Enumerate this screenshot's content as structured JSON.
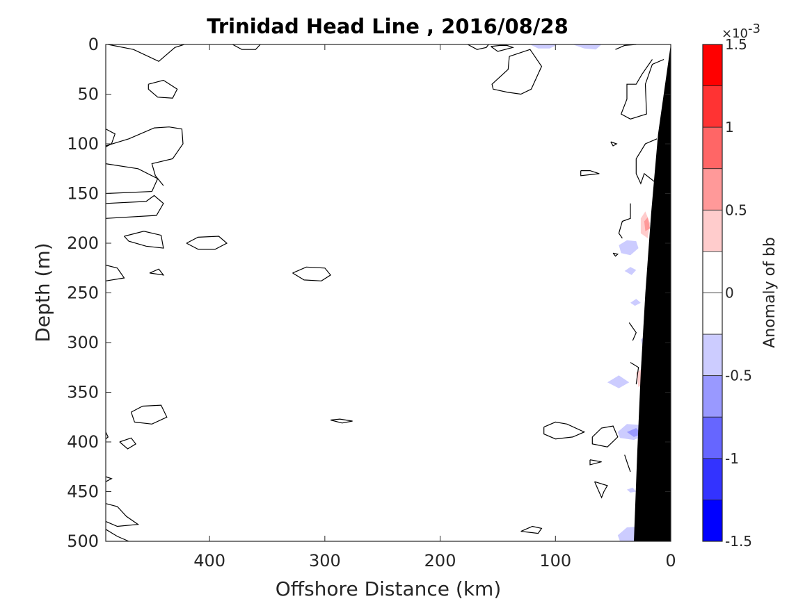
{
  "chart_data": {
    "type": "contour",
    "title": "Trinidad Head Line , 2016/08/28",
    "xlabel": "Offshore Distance (km)",
    "ylabel": "Depth (m)",
    "xlim": [
      490,
      0
    ],
    "ylim": [
      0,
      500
    ],
    "x_reversed": true,
    "y_reversed": true,
    "xticks": [
      "400",
      "300",
      "200",
      "100",
      "0"
    ],
    "xtick_values": [
      400,
      300,
      200,
      100,
      0
    ],
    "yticks": [
      "0",
      "50",
      "100",
      "150",
      "200",
      "250",
      "300",
      "350",
      "400",
      "450",
      "500"
    ],
    "ytick_values": [
      0,
      50,
      100,
      150,
      200,
      250,
      300,
      350,
      400,
      450,
      500
    ],
    "colorbar": {
      "label": "Anomaly of bb",
      "exponent_prefix": "×10",
      "exponent_power": "-3",
      "range": [
        -1.5,
        1.5
      ],
      "step": 0.25,
      "tick_labels": [
        "1.5",
        "1",
        "0.5",
        "0",
        "-0.5",
        "-1",
        "-1.5"
      ],
      "tick_values": [
        1.5,
        1.0,
        0.5,
        0,
        -0.5,
        -1.0,
        -1.5
      ],
      "colors_top_to_bottom": [
        "#ff0000",
        "#ff3333",
        "#ff6666",
        "#ff9999",
        "#ffcccc",
        "#ffffff",
        "#ffffff",
        "#ccccff",
        "#9999ff",
        "#6666ff",
        "#3333ff",
        "#0000ff"
      ]
    },
    "bathymetry_color": "#000000",
    "bathymetry": [
      [
        0,
        0
      ],
      [
        11,
        90
      ],
      [
        17,
        170
      ],
      [
        22,
        250
      ],
      [
        26,
        330
      ],
      [
        29,
        410
      ],
      [
        32,
        500
      ],
      [
        0,
        500
      ]
    ],
    "contours_zero_level": [
      [
        [
          488,
          0
        ],
        [
          466,
          5
        ],
        [
          444,
          17
        ],
        [
          430,
          3
        ],
        [
          422,
          0
        ]
      ],
      [
        [
          380,
          0
        ],
        [
          372,
          5
        ],
        [
          360,
          5
        ],
        [
          356,
          0
        ]
      ],
      [
        [
          453,
          40
        ],
        [
          440,
          36
        ],
        [
          428,
          45
        ],
        [
          432,
          54
        ],
        [
          445,
          53
        ],
        [
          453,
          45
        ],
        [
          453,
          40
        ]
      ],
      [
        [
          490,
          85
        ],
        [
          482,
          90
        ],
        [
          485,
          100
        ],
        [
          490,
          103
        ]
      ],
      [
        [
          490,
          102
        ],
        [
          470,
          95
        ],
        [
          448,
          84
        ],
        [
          435,
          83
        ],
        [
          424,
          85
        ],
        [
          423,
          100
        ],
        [
          432,
          115
        ],
        [
          450,
          120
        ],
        [
          447,
          132
        ],
        [
          440,
          142
        ]
      ],
      [
        [
          490,
          120
        ],
        [
          462,
          125
        ],
        [
          445,
          135
        ],
        [
          450,
          148
        ],
        [
          490,
          150
        ]
      ],
      [
        [
          490,
          160
        ],
        [
          455,
          158
        ],
        [
          448,
          152
        ],
        [
          440,
          160
        ],
        [
          446,
          172
        ],
        [
          490,
          175
        ]
      ],
      [
        [
          474,
          193
        ],
        [
          457,
          188
        ],
        [
          442,
          192
        ],
        [
          440,
          205
        ],
        [
          455,
          203
        ],
        [
          470,
          198
        ],
        [
          474,
          193
        ]
      ],
      [
        [
          420,
          200
        ],
        [
          410,
          194
        ],
        [
          392,
          193
        ],
        [
          385,
          200
        ],
        [
          395,
          206
        ],
        [
          410,
          206
        ],
        [
          420,
          200
        ]
      ],
      [
        [
          490,
          222
        ],
        [
          480,
          225
        ],
        [
          474,
          235
        ],
        [
          490,
          238
        ]
      ],
      [
        [
          452,
          230
        ],
        [
          444,
          226
        ],
        [
          440,
          232
        ],
        [
          452,
          230
        ]
      ],
      [
        [
          328,
          230
        ],
        [
          316,
          224
        ],
        [
          300,
          225
        ],
        [
          295,
          232
        ],
        [
          303,
          238
        ],
        [
          318,
          237
        ],
        [
          328,
          230
        ]
      ],
      [
        [
          156,
          2
        ],
        [
          148,
          1
        ],
        [
          142,
          1
        ],
        [
          137,
          3
        ],
        [
          150,
          7
        ],
        [
          156,
          2
        ]
      ],
      [
        [
          176,
          0
        ],
        [
          168,
          5
        ],
        [
          160,
          3
        ],
        [
          158,
          0
        ]
      ],
      [
        [
          140,
          12
        ],
        [
          122,
          5
        ],
        [
          112,
          22
        ],
        [
          121,
          45
        ],
        [
          130,
          50
        ],
        [
          142,
          48
        ],
        [
          154,
          45
        ],
        [
          155,
          40
        ],
        [
          141,
          25
        ],
        [
          140,
          12
        ]
      ],
      [
        [
          48,
          5
        ],
        [
          40,
          1
        ],
        [
          30,
          0
        ]
      ],
      [
        [
          6,
          15
        ],
        [
          16,
          20
        ],
        [
          22,
          40
        ],
        [
          21,
          70
        ],
        [
          35,
          75
        ],
        [
          43,
          70
        ],
        [
          38,
          55
        ],
        [
          38,
          40
        ],
        [
          30,
          40
        ],
        [
          25,
          30
        ],
        [
          16,
          15
        ]
      ],
      [
        [
          12,
          95
        ],
        [
          22,
          100
        ],
        [
          30,
          115
        ],
        [
          30,
          130
        ],
        [
          26,
          140
        ],
        [
          23,
          130
        ],
        [
          12,
          140
        ]
      ],
      [
        [
          35,
          160
        ],
        [
          35,
          175
        ],
        [
          42,
          178
        ],
        [
          45,
          190
        ],
        [
          42,
          195
        ]
      ],
      [
        [
          52,
          98
        ],
        [
          50,
          102
        ],
        [
          47,
          100
        ],
        [
          52,
          98
        ]
      ],
      [
        [
          78,
          127
        ],
        [
          70,
          127
        ],
        [
          62,
          130
        ],
        [
          78,
          132
        ],
        [
          78,
          127
        ]
      ],
      [
        [
          50,
          210
        ],
        [
          48,
          213
        ],
        [
          46,
          211
        ],
        [
          50,
          210
        ]
      ],
      [
        [
          468,
          370
        ],
        [
          458,
          364
        ],
        [
          442,
          363
        ],
        [
          437,
          375
        ],
        [
          450,
          382
        ],
        [
          465,
          380
        ],
        [
          468,
          370
        ]
      ],
      [
        [
          295,
          378
        ],
        [
          285,
          381
        ],
        [
          276,
          379
        ],
        [
          287,
          377
        ],
        [
          295,
          378
        ]
      ],
      [
        [
          110,
          385
        ],
        [
          100,
          380
        ],
        [
          90,
          382
        ],
        [
          75,
          390
        ],
        [
          85,
          395
        ],
        [
          100,
          397
        ],
        [
          110,
          392
        ],
        [
          110,
          385
        ]
      ],
      [
        [
          68,
          395
        ],
        [
          60,
          386
        ],
        [
          50,
          384
        ],
        [
          46,
          395
        ],
        [
          55,
          405
        ],
        [
          68,
          402
        ],
        [
          68,
          395
        ]
      ],
      [
        [
          490,
          390
        ],
        [
          488,
          395
        ],
        [
          490,
          397
        ]
      ],
      [
        [
          478,
          400
        ],
        [
          468,
          396
        ],
        [
          464,
          402
        ],
        [
          471,
          407
        ],
        [
          478,
          400
        ]
      ],
      [
        [
          490,
          435
        ],
        [
          485,
          437
        ],
        [
          490,
          440
        ]
      ],
      [
        [
          490,
          462
        ],
        [
          480,
          465
        ],
        [
          472,
          475
        ],
        [
          462,
          483
        ],
        [
          480,
          485
        ],
        [
          490,
          480
        ]
      ],
      [
        [
          66,
          440
        ],
        [
          55,
          444
        ],
        [
          58,
          450
        ],
        [
          60,
          456
        ],
        [
          66,
          440
        ]
      ],
      [
        [
          130,
          490
        ],
        [
          120,
          485
        ],
        [
          112,
          487
        ],
        [
          115,
          492
        ],
        [
          130,
          490
        ]
      ],
      [
        [
          490,
          488
        ],
        [
          480,
          495
        ],
        [
          470,
          500
        ]
      ],
      [
        [
          36,
          280
        ],
        [
          30,
          290
        ],
        [
          33,
          298
        ]
      ],
      [
        [
          35,
          320
        ],
        [
          28,
          325
        ],
        [
          30,
          342
        ]
      ],
      [
        [
          40,
          413
        ],
        [
          38,
          420
        ],
        [
          35,
          430
        ]
      ],
      [
        [
          70,
          418
        ],
        [
          60,
          420
        ],
        [
          70,
          423
        ],
        [
          70,
          418
        ]
      ]
    ],
    "negative_patches": [
      {
        "level": -0.25,
        "points": [
          [
            122,
            0
          ],
          [
            115,
            4
          ],
          [
            105,
            4
          ],
          [
            98,
            0
          ]
        ]
      },
      {
        "level": -0.25,
        "points": [
          [
            85,
            0
          ],
          [
            75,
            4
          ],
          [
            65,
            5
          ],
          [
            60,
            0
          ]
        ]
      },
      {
        "level": -0.25,
        "points": [
          [
            45,
            202
          ],
          [
            38,
            197
          ],
          [
            30,
            198
          ],
          [
            28,
            205
          ],
          [
            35,
            212
          ],
          [
            43,
            210
          ],
          [
            45,
            202
          ]
        ]
      },
      {
        "level": -0.25,
        "points": [
          [
            40,
            228
          ],
          [
            35,
            224
          ],
          [
            30,
            227
          ],
          [
            34,
            232
          ],
          [
            40,
            228
          ]
        ]
      },
      {
        "level": -0.25,
        "points": [
          [
            35,
            260
          ],
          [
            30,
            256
          ],
          [
            26,
            260
          ],
          [
            31,
            263
          ],
          [
            35,
            260
          ]
        ]
      },
      {
        "level": -0.25,
        "points": [
          [
            55,
            340
          ],
          [
            45,
            333
          ],
          [
            36,
            340
          ],
          [
            45,
            346
          ],
          [
            55,
            340
          ]
        ]
      },
      {
        "level": -0.25,
        "points": [
          [
            46,
            390
          ],
          [
            38,
            382
          ],
          [
            25,
            383
          ],
          [
            22,
            393
          ],
          [
            32,
            398
          ],
          [
            44,
            396
          ],
          [
            46,
            390
          ]
        ]
      },
      {
        "level": -0.5,
        "points": [
          [
            38,
            390
          ],
          [
            30,
            386
          ],
          [
            25,
            392
          ],
          [
            32,
            395
          ],
          [
            38,
            390
          ]
        ]
      },
      {
        "level": -0.25,
        "points": [
          [
            38,
            448
          ],
          [
            33,
            446
          ],
          [
            30,
            450
          ],
          [
            35,
            451
          ],
          [
            38,
            448
          ]
        ]
      },
      {
        "level": -0.25,
        "points": [
          [
            46,
            494
          ],
          [
            38,
            486
          ],
          [
            25,
            485
          ],
          [
            22,
            495
          ],
          [
            28,
            500
          ],
          [
            44,
            500
          ],
          [
            46,
            494
          ]
        ]
      },
      {
        "level": -0.25,
        "points": [
          [
            26,
            297
          ],
          [
            22,
            293
          ],
          [
            20,
            300
          ],
          [
            25,
            302
          ],
          [
            26,
            297
          ]
        ]
      }
    ],
    "positive_patches": [
      {
        "level": 0.25,
        "points": [
          [
            26,
            175
          ],
          [
            22,
            168
          ],
          [
            18,
            180
          ],
          [
            20,
            195
          ],
          [
            26,
            190
          ],
          [
            26,
            175
          ]
        ]
      },
      {
        "level": 0.5,
        "points": [
          [
            23,
            178
          ],
          [
            20,
            174
          ],
          [
            18,
            185
          ],
          [
            22,
            188
          ],
          [
            23,
            178
          ]
        ]
      },
      {
        "level": 0.25,
        "points": [
          [
            30,
            330
          ],
          [
            24,
            326
          ],
          [
            22,
            340
          ],
          [
            28,
            345
          ],
          [
            30,
            330
          ]
        ]
      }
    ]
  }
}
